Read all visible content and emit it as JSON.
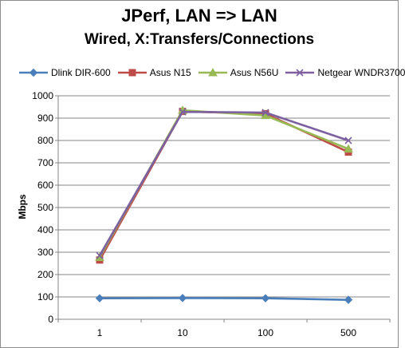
{
  "chart_data": {
    "type": "line",
    "title": "JPerf, LAN => LAN",
    "subtitle": "Wired, X:Transfers/Connections",
    "xlabel": "",
    "ylabel": "Mbps",
    "categories": [
      "1",
      "10",
      "100",
      "500"
    ],
    "ylim": [
      0,
      1000
    ],
    "yticks": [
      "0",
      "100",
      "200",
      "300",
      "400",
      "500",
      "600",
      "700",
      "800",
      "900",
      "1000"
    ],
    "grid": true,
    "legend_position": "top",
    "series": [
      {
        "name": "Dlink DIR-600",
        "color": "#4a7ebb",
        "marker": "diamond",
        "values": [
          94,
          95,
          94,
          87
        ]
      },
      {
        "name": "Asus N15",
        "color": "#be4b48",
        "marker": "square",
        "values": [
          265,
          930,
          920,
          748
        ]
      },
      {
        "name": "Asus N56U",
        "color": "#98b954",
        "marker": "triangle",
        "values": [
          277,
          935,
          912,
          762
        ]
      },
      {
        "name": "Netgear WNDR3700",
        "color": "#7d60a0",
        "marker": "x",
        "values": [
          285,
          928,
          925,
          800
        ]
      }
    ]
  }
}
